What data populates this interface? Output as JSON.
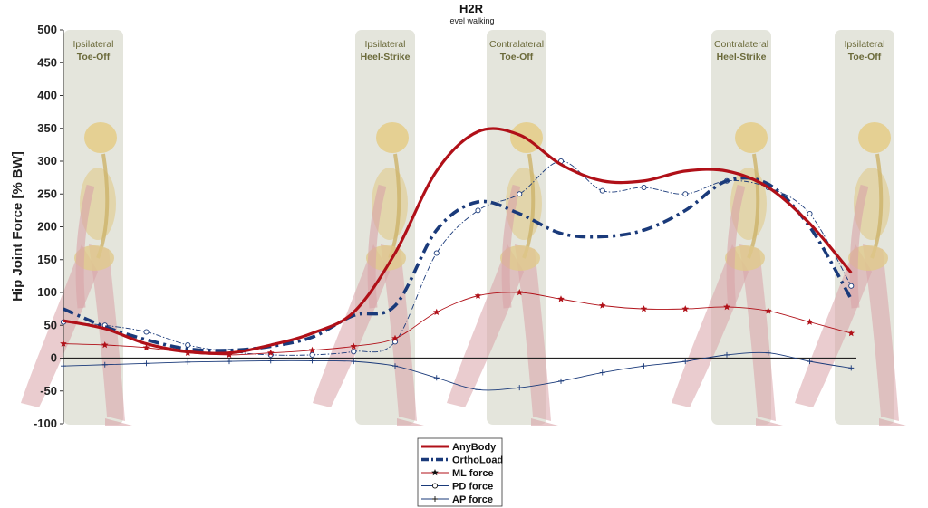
{
  "chart_data": {
    "type": "line",
    "title": "H2R",
    "subtitle": "level walking",
    "ylabel": "Hip Joint Force [% BW]",
    "xlabel": "",
    "ylim": [
      -100,
      500
    ],
    "yticks": [
      -100,
      -50,
      0,
      50,
      100,
      150,
      200,
      250,
      300,
      350,
      400,
      450,
      500
    ],
    "grid": false,
    "legend_position": "bottom-center",
    "phases": [
      {
        "line1": "Ipsilateral",
        "line2": "Toe-Off"
      },
      {
        "line1": "Ipsilateral",
        "line2": "Heel-Strike"
      },
      {
        "line1": "Contralateral",
        "line2": "Toe-Off"
      },
      {
        "line1": "Contralateral",
        "line2": "Heel-Strike"
      },
      {
        "line1": "Ipsilateral",
        "line2": "Toe-Off"
      }
    ],
    "x": [
      0,
      5,
      10,
      15,
      20,
      25,
      30,
      35,
      40,
      45,
      50,
      55,
      60,
      65,
      70,
      75,
      80,
      85,
      90,
      95,
      100
    ],
    "series": [
      {
        "name": "AnyBody",
        "color": "#b01018",
        "style": "solid-thick",
        "values": [
          57,
          45,
          22,
          10,
          8,
          20,
          38,
          70,
          160,
          285,
          345,
          340,
          295,
          270,
          270,
          285,
          285,
          260,
          205,
          130,
          null
        ]
      },
      {
        "name": "OrthoLoad",
        "color": "#1a3a7a",
        "style": "dashdot-thick",
        "values": [
          75,
          48,
          28,
          14,
          12,
          18,
          32,
          65,
          80,
          195,
          238,
          220,
          190,
          185,
          195,
          225,
          270,
          265,
          200,
          90,
          null
        ]
      },
      {
        "name": "ML force",
        "color": "#b01018",
        "style": "thin-star",
        "values": [
          22,
          20,
          16,
          8,
          5,
          8,
          12,
          18,
          30,
          70,
          95,
          100,
          90,
          80,
          75,
          75,
          78,
          72,
          55,
          38,
          null
        ]
      },
      {
        "name": "PD force",
        "color": "#1a3a7a",
        "style": "thin-circle",
        "values": [
          55,
          50,
          40,
          20,
          10,
          5,
          5,
          10,
          25,
          160,
          225,
          250,
          300,
          255,
          260,
          250,
          270,
          260,
          220,
          110,
          null
        ]
      },
      {
        "name": "AP force",
        "color": "#1a3a7a",
        "style": "thin-plus",
        "values": [
          -12,
          -10,
          -8,
          -6,
          -5,
          -4,
          -4,
          -5,
          -12,
          -30,
          -48,
          -45,
          -35,
          -22,
          -12,
          -5,
          5,
          8,
          -5,
          -15,
          null
        ]
      }
    ]
  }
}
